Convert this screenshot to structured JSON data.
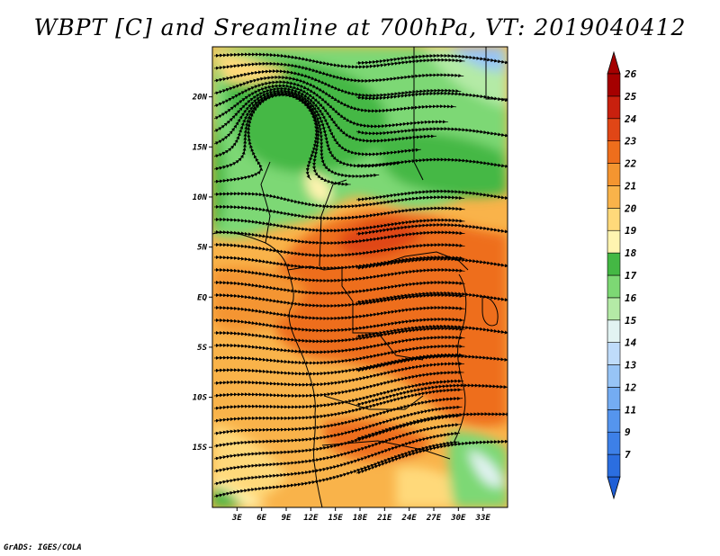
{
  "title": "WBPT [C] and Sreamline at 700hPa, VT: 2019040412",
  "credit": "GrADS: IGES/COLA",
  "map": {
    "lon_range": [
      0,
      36
    ],
    "lat_range": [
      -21,
      25
    ],
    "lat_labels": [
      {
        "lat": 20,
        "text": "20N"
      },
      {
        "lat": 15,
        "text": "15N"
      },
      {
        "lat": 10,
        "text": "10N"
      },
      {
        "lat": 5,
        "text": "5N"
      },
      {
        "lat": 0,
        "text": "EQ"
      },
      {
        "lat": -5,
        "text": "5S"
      },
      {
        "lat": -10,
        "text": "10S"
      },
      {
        "lat": -15,
        "text": "15S"
      }
    ],
    "lon_labels": [
      {
        "lon": 3,
        "text": "3E"
      },
      {
        "lon": 6,
        "text": "6E"
      },
      {
        "lon": 9,
        "text": "9E"
      },
      {
        "lon": 12,
        "text": "12E"
      },
      {
        "lon": 15,
        "text": "15E"
      },
      {
        "lon": 18,
        "text": "18E"
      },
      {
        "lon": 21,
        "text": "21E"
      },
      {
        "lon": 24,
        "text": "24E"
      },
      {
        "lon": 27,
        "text": "27E"
      },
      {
        "lon": 30,
        "text": "30E"
      },
      {
        "lon": 33,
        "text": "33E"
      }
    ]
  },
  "colorbar": {
    "under_color": "#1f5fd6",
    "over_color": "#a50000",
    "levels": [
      {
        "label": "7",
        "color": "#2b6ee0"
      },
      {
        "label": "9",
        "color": "#3d80e8"
      },
      {
        "label": "11",
        "color": "#5595ee"
      },
      {
        "label": "12",
        "color": "#74acf2"
      },
      {
        "label": "13",
        "color": "#97c4f6"
      },
      {
        "label": "14",
        "color": "#bfdcfa"
      },
      {
        "label": "15",
        "color": "#e2f3f2"
      },
      {
        "label": "16",
        "color": "#b4eaa6"
      },
      {
        "label": "17",
        "color": "#7dd874"
      },
      {
        "label": "18",
        "color": "#44b844"
      },
      {
        "label": "19",
        "color": "#fff4b0"
      },
      {
        "label": "20",
        "color": "#ffd97a"
      },
      {
        "label": "21",
        "color": "#f9b34a"
      },
      {
        "label": "22",
        "color": "#f49530"
      },
      {
        "label": "23",
        "color": "#ee6e1c"
      },
      {
        "label": "24",
        "color": "#e04616"
      },
      {
        "label": "25",
        "color": "#c8200e"
      },
      {
        "label": "26",
        "color": "#a50000"
      }
    ]
  }
}
